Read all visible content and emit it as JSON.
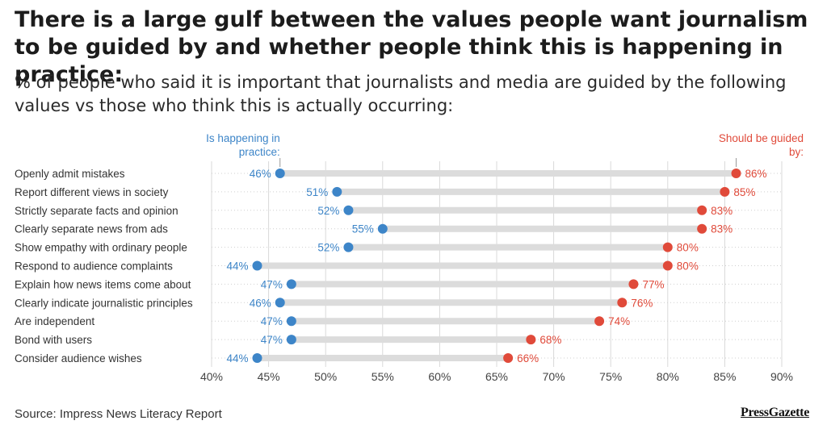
{
  "header": {
    "title": "There is a large gulf between the values people want journalism to be guided by and whether people think this is happening in practice:",
    "subtitle": "% of people who said it is important that journalists and media are guided by the following values vs those who think this is actually occurring:"
  },
  "chart_data": {
    "type": "dumbbell",
    "series": [
      {
        "name": "Is happening in practice:",
        "color": "#3d85c8",
        "values": [
          46,
          51,
          52,
          55,
          52,
          44,
          47,
          46,
          47,
          47,
          44
        ]
      },
      {
        "name": "Should be guided by:",
        "color": "#e04a3a",
        "values": [
          86,
          85,
          83,
          83,
          80,
          80,
          77,
          76,
          74,
          68,
          66
        ]
      }
    ],
    "categories": [
      "Openly admit mistakes",
      "Report different views in society",
      "Strictly separate facts and opinion",
      "Clearly separate news from ads",
      "Show empathy with ordinary people",
      "Respond to audience complaints",
      "Explain how news items come about",
      "Clearly indicate journalistic principles",
      "Are independent",
      "Bond with users",
      "Consider audience wishes"
    ],
    "xlim": [
      40,
      90
    ],
    "xticks": [
      40,
      45,
      50,
      55,
      60,
      65,
      70,
      75,
      80,
      85,
      90
    ],
    "tick_suffix": "%",
    "grid": true
  },
  "footer": {
    "source": "Source: Impress News Literacy Report",
    "logo": "PressGazette"
  }
}
